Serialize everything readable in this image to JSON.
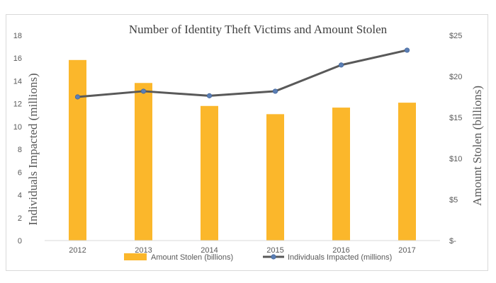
{
  "chart_data": {
    "type": "bar",
    "title": "Number of Identity Theft Victims and Amount Stolen",
    "categories": [
      "2012",
      "2013",
      "2014",
      "2015",
      "2016",
      "2017"
    ],
    "series": [
      {
        "name": "Amount Stolen (billions)",
        "type": "bar",
        "axis": "right",
        "values": [
          22.0,
          19.2,
          16.4,
          15.4,
          16.2,
          16.8
        ]
      },
      {
        "name": "Individuals Impacted (millions)",
        "type": "line",
        "axis": "left",
        "values": [
          12.6,
          13.1,
          12.7,
          13.1,
          15.4,
          16.7
        ]
      }
    ],
    "y_left": {
      "label": "Individuals Impacted (millions)",
      "ylim": [
        0,
        18
      ],
      "ticks": [
        "0",
        "2",
        "4",
        "6",
        "8",
        "10",
        "12",
        "14",
        "16",
        "18"
      ]
    },
    "y_right": {
      "label": "Amount Stolen (billions)",
      "ylim": [
        0,
        25
      ],
      "ticks": [
        "$-",
        "$5",
        "$10",
        "$15",
        "$20",
        "$25"
      ]
    },
    "grid": false,
    "legend_position": "bottom",
    "colors": {
      "bar": "#FBB72B",
      "line": "#595959",
      "marker": "#5B7FB5",
      "text": "#595959",
      "title": "#404040"
    }
  }
}
